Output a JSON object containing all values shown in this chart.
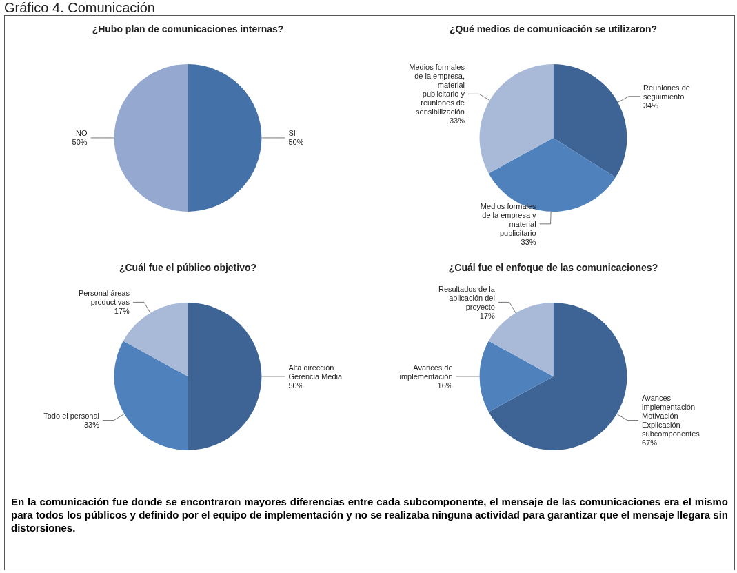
{
  "chart_data": [
    {
      "type": "pie",
      "title": "¿Hubo plan de comunicaciones internas?",
      "categories": [
        "SI",
        "NO"
      ],
      "values": [
        50,
        50
      ],
      "value_labels": [
        "50%",
        "50%"
      ],
      "colors": [
        "#4472a8",
        "#95a9d0"
      ]
    },
    {
      "type": "pie",
      "title": "¿Qué medios de comunicación se utilizaron?",
      "categories": [
        "Reuniones de\nseguimiento",
        "Medios formales\nde la empresa y\nmaterial\npublicitario",
        "Medios formales\nde la empresa,\nmaterial\npublicitario y\nreuniones de\nsensibilización"
      ],
      "values": [
        34,
        33,
        33
      ],
      "value_labels": [
        "34%",
        "33%",
        "33%"
      ],
      "colors": [
        "#3e6496",
        "#4f81bd",
        "#a9bad9"
      ]
    },
    {
      "type": "pie",
      "title": "¿Cuál fue el público objetivo?",
      "categories": [
        "Alta dirección\nGerencia Media",
        "Todo el personal",
        "Personal áreas\nproductivas"
      ],
      "values": [
        50,
        33,
        17
      ],
      "value_labels": [
        "50%",
        "33%",
        "17%"
      ],
      "colors": [
        "#3e6496",
        "#4f81bd",
        "#a9bad9"
      ]
    },
    {
      "type": "pie",
      "title": "¿Cuál fue el enfoque de las comunicaciones?",
      "categories": [
        "Avances\nimplementación\nMotivación\nExplicación\nsubcomponentes",
        "Avances de\nimplementación",
        "Resultados de la\naplicación del\nproyecto"
      ],
      "values": [
        67,
        16,
        17
      ],
      "value_labels": [
        "67%",
        "16%",
        "17%"
      ],
      "colors": [
        "#3e6496",
        "#4f81bd",
        "#a9bad9"
      ]
    },
    {
      "type": "other",
      "title": "Gráfico 4. Comunicación",
      "annotations": [
        "En la comunicación fue donde se encontraron mayores diferencias entre cada subcomponente, el mensaje de las comunicaciones era el mismo para todos los públicos y definido por el equipo de implementación y no se realizaba ninguna actividad para garantizar que el mensaje llegara sin distorsiones."
      ]
    }
  ]
}
